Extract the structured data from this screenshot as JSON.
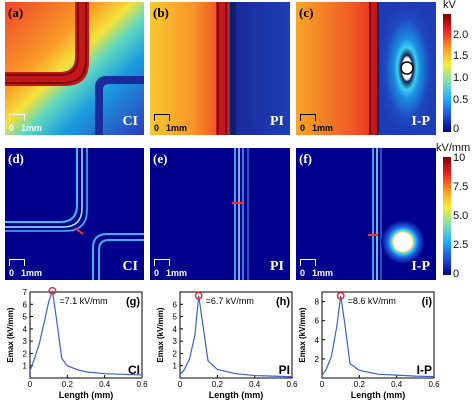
{
  "row1": {
    "panels": [
      {
        "label": "(a)",
        "tag": "CI"
      },
      {
        "label": "(b)",
        "tag": "PI"
      },
      {
        "label": "(c)",
        "tag": "I-P"
      }
    ],
    "scale_zero": "0",
    "scale_unit": "1mm",
    "colorbar": {
      "unit": "kV",
      "ticks": [
        "2.0",
        "1.5",
        "1.0",
        "0.5",
        "0"
      ],
      "range": [
        0,
        2
      ]
    }
  },
  "row2": {
    "panels": [
      {
        "label": "(d)",
        "tag": "CI"
      },
      {
        "label": "(e)",
        "tag": "PI"
      },
      {
        "label": "(f)",
        "tag": "I-P"
      }
    ],
    "scale_zero": "0",
    "scale_unit": "1mm",
    "colorbar": {
      "unit": "kV/mm",
      "ticks": [
        "10",
        "7.5",
        "5.0",
        "2.5",
        "0"
      ],
      "range": [
        0,
        10
      ]
    }
  },
  "chart_data": [
    {
      "type": "line",
      "panel": "(g)",
      "tag": "CI",
      "xlabel": "Length (mm)",
      "ylabel": "Emax (kV/mm)",
      "xlim": [
        0,
        0.6
      ],
      "ylim": [
        0,
        7
      ],
      "xticks": [
        "0",
        "0.2",
        "0.4",
        "0.6"
      ],
      "yticks": [
        "1",
        "2",
        "3",
        "4",
        "5",
        "6",
        "7"
      ],
      "annotation": "=7.1 kV/mm",
      "x": [
        0,
        0.02,
        0.05,
        0.08,
        0.1,
        0.12,
        0.14,
        0.17,
        0.2,
        0.25,
        0.3,
        0.4,
        0.5,
        0.6
      ],
      "y": [
        0.6,
        1.4,
        2.8,
        4.8,
        6.2,
        7.1,
        5.0,
        1.6,
        1.0,
        0.7,
        0.5,
        0.35,
        0.3,
        0.25
      ]
    },
    {
      "type": "line",
      "panel": "(h)",
      "tag": "PI",
      "xlabel": "Length (mm)",
      "ylabel": "Emax (kV/mm)",
      "xlim": [
        0,
        0.6
      ],
      "ylim": [
        0,
        7
      ],
      "xticks": [
        "0",
        "0.2",
        "0.4",
        "0.6"
      ],
      "yticks": [
        "1",
        "2",
        "3",
        "4",
        "5",
        "6"
      ],
      "annotation": "=6.7 kV/mm",
      "x": [
        0,
        0.02,
        0.05,
        0.08,
        0.1,
        0.12,
        0.15,
        0.2,
        0.3,
        0.4,
        0.5,
        0.6
      ],
      "y": [
        0.3,
        0.6,
        1.5,
        3.5,
        6.7,
        4.6,
        1.4,
        0.7,
        0.35,
        0.2,
        0.15,
        0.1
      ]
    },
    {
      "type": "line",
      "panel": "(i)",
      "tag": "I-P",
      "xlabel": "Length (mm)",
      "ylabel": "Emax (kV/mm)",
      "xlim": [
        0,
        0.6
      ],
      "ylim": [
        0,
        9
      ],
      "xticks": [
        "0",
        "0.2",
        "0.4",
        "0.6"
      ],
      "yticks": [
        "2",
        "4",
        "6",
        "8"
      ],
      "annotation": "=8.6 kV/mm",
      "x": [
        0,
        0.02,
        0.05,
        0.08,
        0.1,
        0.12,
        0.15,
        0.2,
        0.3,
        0.4,
        0.5,
        0.6
      ],
      "y": [
        0.3,
        0.8,
        2.2,
        5.5,
        8.6,
        6.0,
        1.5,
        0.8,
        0.4,
        0.3,
        0.2,
        0.15
      ]
    }
  ],
  "colors": {
    "curve": "#3a62c8",
    "peak": "#e03030",
    "dark_bg": "#00008c"
  }
}
